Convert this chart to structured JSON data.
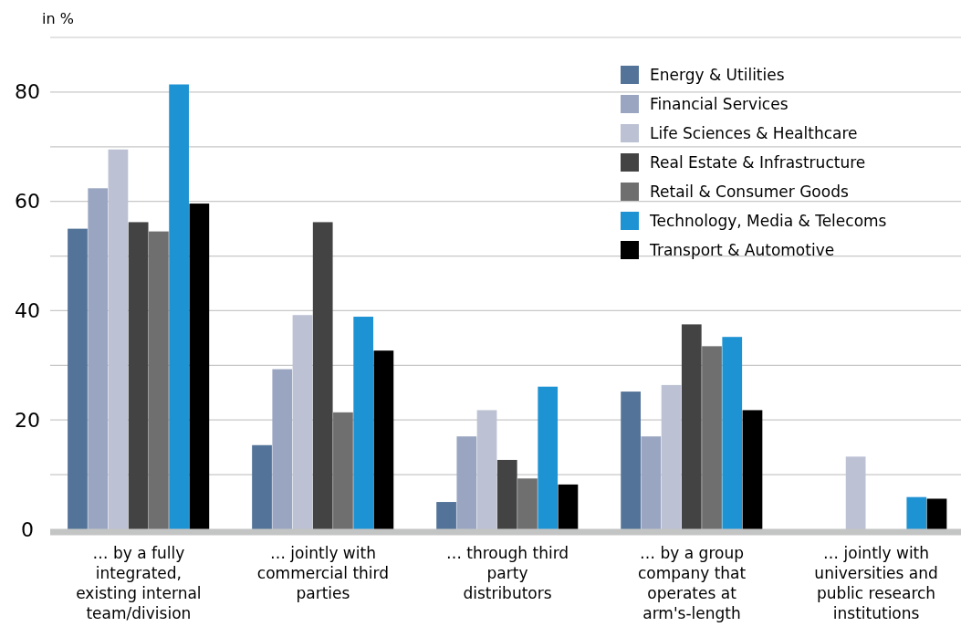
{
  "chart_data": {
    "type": "bar",
    "ylabel": "in %",
    "categories": [
      "… by a fully integrated, existing internal team/division",
      "… jointly with commercial third parties",
      "… through third party distributors",
      "… by a group company that operates at arm's-length",
      "… jointly with universities and public research institutions"
    ],
    "series": [
      {
        "name": "Energy & Utilities",
        "color": "#537398",
        "values": [
          55.0,
          15.4,
          5.0,
          25.2,
          0
        ]
      },
      {
        "name": "Financial Services",
        "color": "#9aa6c1",
        "values": [
          62.4,
          29.3,
          17.0,
          17.0,
          0
        ]
      },
      {
        "name": "Life Sciences & Healthcare",
        "color": "#bcc1d4",
        "values": [
          69.5,
          39.2,
          21.8,
          26.4,
          13.3
        ]
      },
      {
        "name": "Real Estate & Infrastructure",
        "color": "#434343",
        "values": [
          56.2,
          56.2,
          12.7,
          37.5,
          0
        ]
      },
      {
        "name": "Retail & Consumer Goods",
        "color": "#6f6f6f",
        "values": [
          54.5,
          21.4,
          9.3,
          33.5,
          0
        ]
      },
      {
        "name": "Technology, Media & Telecoms",
        "color": "#1e93d3",
        "values": [
          81.4,
          38.9,
          26.1,
          35.2,
          5.9
        ]
      },
      {
        "name": "Transport & Automotive",
        "color": "#000000",
        "values": [
          59.6,
          32.7,
          8.2,
          21.8,
          5.6
        ]
      }
    ],
    "ylim": [
      0,
      90
    ],
    "yticks": [
      0,
      {
        "value": 10,
        "label": null
      },
      20,
      {
        "value": 30,
        "label": null
      },
      40,
      {
        "value": 50,
        "label": null
      },
      60,
      {
        "value": 70,
        "label": null
      },
      80,
      {
        "value": 90,
        "label": null
      }
    ],
    "grid": "y",
    "legend": "top right"
  }
}
